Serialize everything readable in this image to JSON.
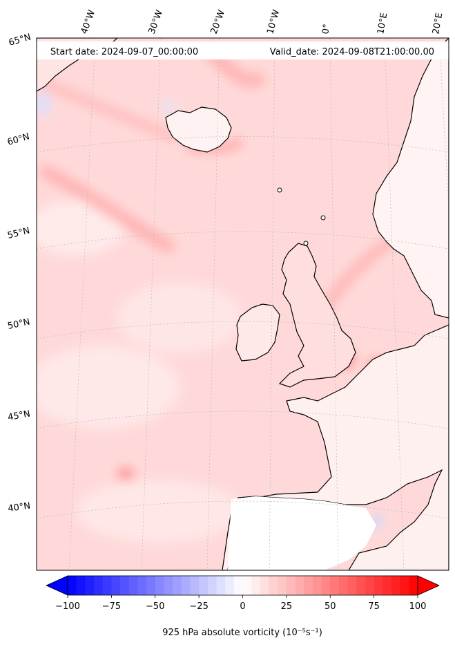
{
  "header": {
    "start_date": "Start date: 2024-09-07_00:00:00",
    "valid_date": "Valid_date: 2024-09-08T21:00:00.00"
  },
  "map": {
    "projection": "conic",
    "field_color_low": "#ffffff",
    "field_color_mid": "#ffd6d6",
    "field_color_high": "#ff4a4a",
    "coastline_color": "#000000",
    "lon_labels": [
      "40°W",
      "30°W",
      "20°W",
      "10°W",
      "0°",
      "10°E",
      "20°E"
    ],
    "lat_labels": [
      "65°N",
      "60°N",
      "55°N",
      "50°N",
      "45°N",
      "40°N"
    ]
  },
  "colorbar": {
    "ticks": [
      "−100",
      "−75",
      "−50",
      "−25",
      "0",
      "25",
      "50",
      "75",
      "100"
    ],
    "label": "925 hPa absolute vorticity (10⁻⁵s⁻¹)",
    "vmin": -100,
    "vmax": 100,
    "colormap": "bwr",
    "extend": "both"
  }
}
